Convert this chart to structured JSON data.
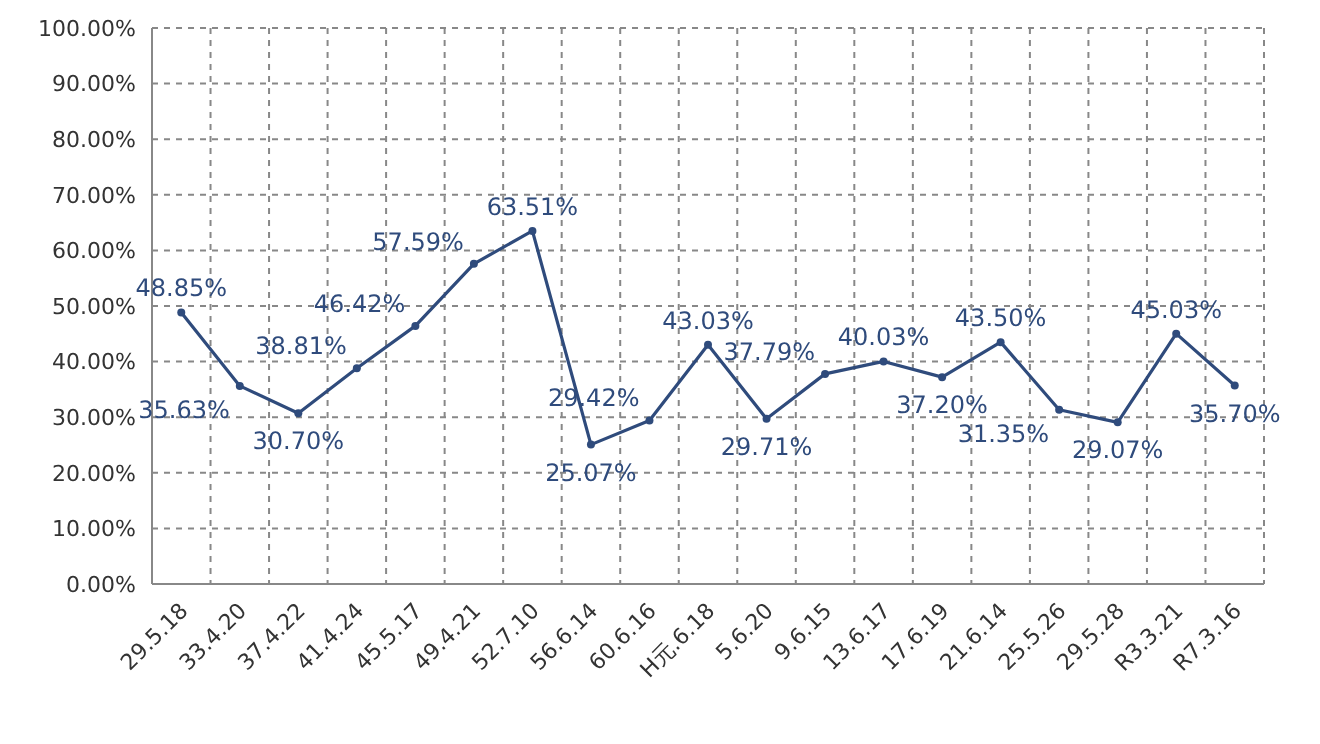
{
  "chart_data": {
    "type": "line",
    "categories": [
      "29.5.18",
      "33.4.20",
      "37.4.22",
      "41.4.24",
      "45.5.17",
      "49.4.21",
      "52.7.10",
      "56.6.14",
      "60.6.16",
      "H元.6.18",
      "5.6.20",
      "9.6.15",
      "13.6.17",
      "17.6.19",
      "21.6.14",
      "25.5.26",
      "29.5.28",
      "R3.3.21",
      "R7.3.16"
    ],
    "series": [
      {
        "color": "#2f4b7c",
        "values": [
          48.85,
          35.63,
          30.7,
          38.81,
          46.42,
          57.59,
          63.51,
          25.07,
          29.42,
          43.03,
          29.71,
          37.79,
          40.03,
          37.2,
          43.5,
          31.35,
          29.07,
          45.03,
          35.7
        ],
        "value_labels": [
          "48.85%",
          "35.63%",
          "30.70%",
          "38.81%",
          "46.42%",
          "57.59%",
          "63.51%",
          "25.07%",
          "29.42%",
          "43.03%",
          "29.71%",
          "37.79%",
          "40.03%",
          "37.20%",
          "43.50%",
          "31.35%",
          "29.07%",
          "45.03%",
          "35.70%"
        ]
      }
    ],
    "ylim": [
      0,
      100
    ],
    "yticks": [
      {
        "value": 0,
        "label": "0.00%"
      },
      {
        "value": 10,
        "label": "10.00%"
      },
      {
        "value": 20,
        "label": "20.00%"
      },
      {
        "value": 30,
        "label": "30.00%"
      },
      {
        "value": 40,
        "label": "40.00%"
      },
      {
        "value": 50,
        "label": "50.00%"
      },
      {
        "value": 60,
        "label": "60.00%"
      },
      {
        "value": 70,
        "label": "70.00%"
      },
      {
        "value": 80,
        "label": "80.00%"
      },
      {
        "value": 90,
        "label": "90.00%"
      },
      {
        "value": 100,
        "label": "100.00%"
      }
    ],
    "grid": true,
    "marker": "circle",
    "line_style": "solid",
    "legend": false
  }
}
